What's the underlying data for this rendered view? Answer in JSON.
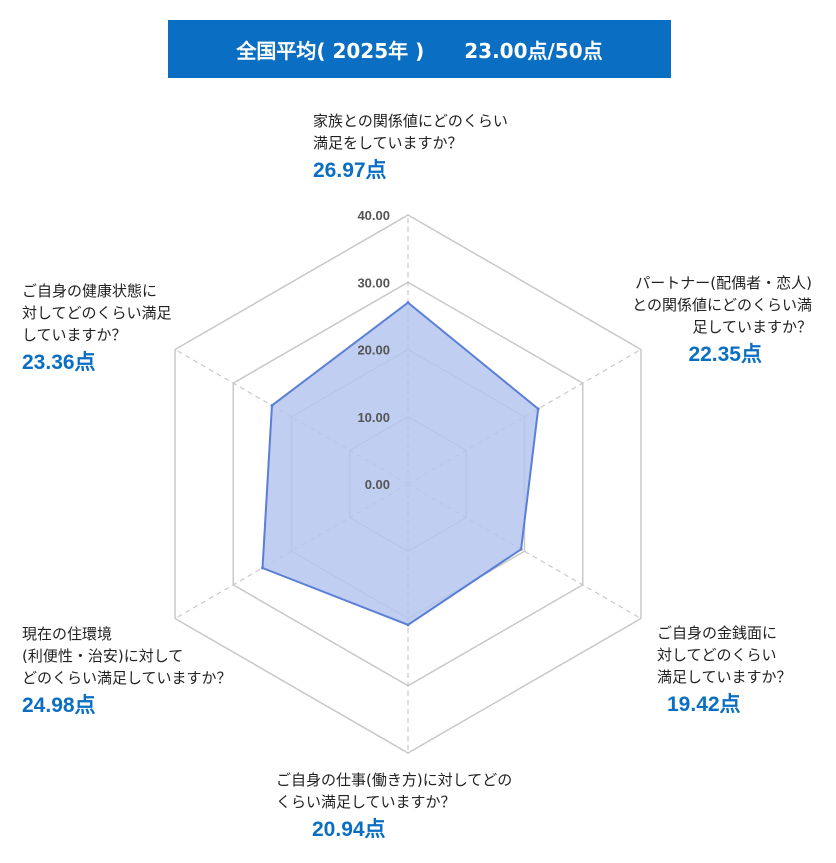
{
  "banner": {
    "left": "全国平均( 2025年 )",
    "right": "23.00点/50点"
  },
  "chart_data": {
    "type": "radar",
    "title": "全国平均( 2025年 )  23.00点/50点",
    "rlim": [
      0,
      40
    ],
    "ticks": [
      "0.00",
      "10.00",
      "20.00",
      "30.00",
      "40.00"
    ],
    "tick_values": [
      0,
      10,
      20,
      30,
      40
    ],
    "fill_color": "#b4c6ef",
    "line_color": "#5b7fd6",
    "value_color": "#0a6fc2",
    "axes": [
      {
        "label": "家族との関係値にどのくらい\n満足をしていますか？",
        "value": 26.97,
        "value_label": "26.97点"
      },
      {
        "label": "パートナー(配偶者・恋人)\nとの関係値にどのくらい満\n足していますか？",
        "value": 22.35,
        "value_label": "22.35点"
      },
      {
        "label": "ご自身の金銭面に\n対してどのくらい\n満足していますか？",
        "value": 19.42,
        "value_label": "19.42点"
      },
      {
        "label": "ご自身の仕事(働き方)に対してどの\nくらい満足していますか？",
        "value": 20.94,
        "value_label": "20.94点"
      },
      {
        "label": "現在の住環境\n(利便性・治安)に対して\nどのくらい満足していますか？",
        "value": 24.98,
        "value_label": "24.98点"
      },
      {
        "label": "ご自身の健康状態に\n対してどのくらい満足\nしていますか？",
        "value": 23.36,
        "value_label": "23.36点"
      }
    ]
  }
}
